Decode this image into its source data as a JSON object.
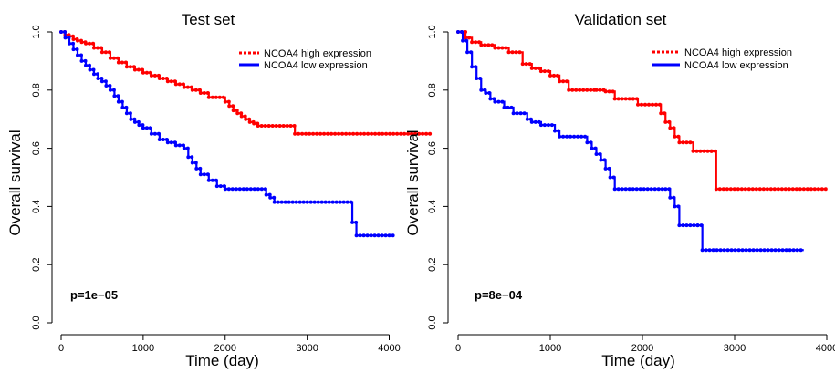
{
  "chart_data": [
    {
      "type": "line",
      "title": "Test set",
      "xlabel": "Time (day)",
      "ylabel": "Overall survival",
      "xlim": [
        0,
        4500
      ],
      "ylim": [
        0,
        1
      ],
      "x_ticks": [
        0,
        1000,
        2000,
        3000,
        4000
      ],
      "x_tick_labels": [
        "0",
        "1000",
        "2000",
        "3000",
        "4000"
      ],
      "y_ticks": [
        0,
        0.2,
        0.4,
        0.6,
        0.8,
        1
      ],
      "y_tick_labels": [
        "0.0",
        "0.2",
        "0.4",
        "0.6",
        "0.8",
        "1.0"
      ],
      "legend_position": "top-right",
      "annotation": "p=1e−05",
      "series": [
        {
          "name": "NCOA4 high expression",
          "color": "#ff0000",
          "x": [
            0,
            50,
            100,
            150,
            200,
            250,
            300,
            400,
            500,
            600,
            700,
            800,
            900,
            1000,
            1100,
            1200,
            1300,
            1400,
            1500,
            1600,
            1700,
            1800,
            2000,
            2050,
            2100,
            2150,
            2200,
            2250,
            2300,
            2350,
            2400,
            2800,
            2850,
            4500
          ],
          "y": [
            1.0,
            0.99,
            0.985,
            0.975,
            0.97,
            0.965,
            0.96,
            0.945,
            0.93,
            0.91,
            0.895,
            0.88,
            0.87,
            0.86,
            0.85,
            0.84,
            0.83,
            0.82,
            0.81,
            0.8,
            0.79,
            0.775,
            0.76,
            0.745,
            0.73,
            0.72,
            0.71,
            0.7,
            0.69,
            0.685,
            0.677,
            0.677,
            0.65,
            0.65
          ]
        },
        {
          "name": "NCOA4 low expression",
          "color": "#0000ff",
          "x": [
            0,
            50,
            100,
            150,
            200,
            250,
            300,
            350,
            400,
            450,
            500,
            550,
            600,
            650,
            700,
            750,
            800,
            850,
            900,
            950,
            1000,
            1100,
            1200,
            1300,
            1400,
            1500,
            1550,
            1600,
            1650,
            1700,
            1800,
            1900,
            2000,
            2500,
            2550,
            2600,
            3550,
            3600,
            4050
          ],
          "y": [
            1.0,
            0.98,
            0.96,
            0.94,
            0.92,
            0.9,
            0.885,
            0.87,
            0.855,
            0.84,
            0.83,
            0.815,
            0.8,
            0.78,
            0.76,
            0.74,
            0.72,
            0.7,
            0.69,
            0.68,
            0.67,
            0.65,
            0.63,
            0.62,
            0.61,
            0.6,
            0.57,
            0.55,
            0.53,
            0.51,
            0.49,
            0.47,
            0.46,
            0.44,
            0.43,
            0.415,
            0.345,
            0.3,
            0.3
          ]
        }
      ]
    },
    {
      "type": "line",
      "title": "Validation set",
      "xlabel": "Time (day)",
      "ylabel": "Overall survival",
      "xlim": [
        0,
        4000
      ],
      "ylim": [
        0,
        1
      ],
      "x_ticks": [
        0,
        1000,
        2000,
        3000,
        4000
      ],
      "x_tick_labels": [
        "0",
        "1000",
        "2000",
        "3000",
        "4000"
      ],
      "y_ticks": [
        0,
        0.2,
        0.4,
        0.6,
        0.8,
        1
      ],
      "y_tick_labels": [
        "0.0",
        "0.2",
        "0.4",
        "0.6",
        "0.8",
        "1.0"
      ],
      "legend_position": "top-right",
      "annotation": "p=8e−04",
      "series": [
        {
          "name": "NCOA4 high expression",
          "color": "#ff0000",
          "x": [
            0,
            80,
            150,
            250,
            400,
            550,
            700,
            800,
            900,
            1000,
            1100,
            1200,
            1500,
            1600,
            1700,
            1900,
            1950,
            2200,
            2250,
            2300,
            2350,
            2400,
            2550,
            2750,
            2800,
            4000
          ],
          "y": [
            1.0,
            0.98,
            0.965,
            0.955,
            0.945,
            0.93,
            0.89,
            0.875,
            0.865,
            0.85,
            0.83,
            0.8,
            0.8,
            0.795,
            0.77,
            0.77,
            0.75,
            0.72,
            0.69,
            0.67,
            0.64,
            0.62,
            0.59,
            0.59,
            0.46,
            0.46
          ]
        },
        {
          "name": "NCOA4 low expression",
          "color": "#0000ff",
          "x": [
            0,
            50,
            100,
            150,
            200,
            250,
            300,
            350,
            400,
            500,
            600,
            750,
            800,
            900,
            1050,
            1100,
            1400,
            1450,
            1500,
            1550,
            1600,
            1650,
            1700,
            2250,
            2300,
            2350,
            2400,
            2600,
            2650,
            3750
          ],
          "y": [
            1.0,
            0.97,
            0.93,
            0.88,
            0.84,
            0.8,
            0.79,
            0.77,
            0.76,
            0.74,
            0.72,
            0.7,
            0.69,
            0.68,
            0.66,
            0.64,
            0.62,
            0.6,
            0.58,
            0.56,
            0.53,
            0.5,
            0.46,
            0.46,
            0.43,
            0.4,
            0.335,
            0.335,
            0.25,
            0.25
          ]
        }
      ]
    }
  ]
}
